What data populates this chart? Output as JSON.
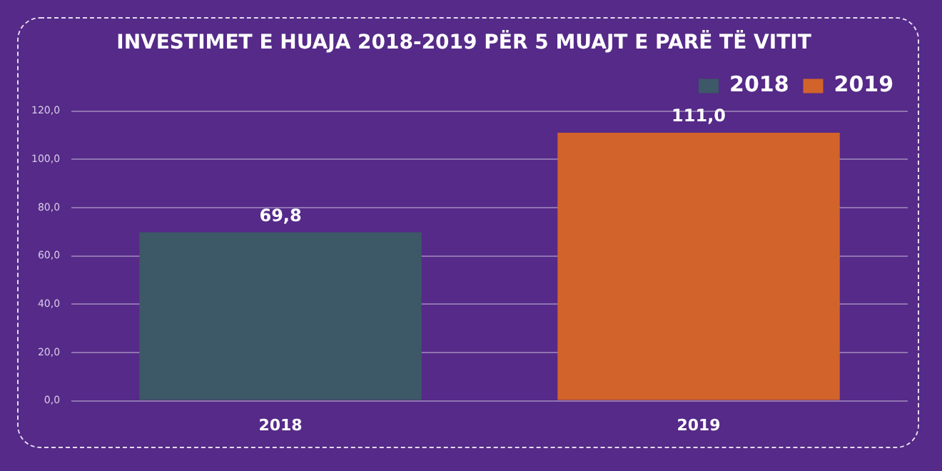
{
  "chart_data": {
    "type": "bar",
    "title": "INVESTIMET E HUAJA 2018-2019 PËR 5 MUAJT E PARË TË VITIT",
    "categories": [
      "2018",
      "2019"
    ],
    "series": [
      {
        "name": "2018",
        "color": "#3d5866",
        "values": [
          69.8,
          null
        ],
        "value_labels": [
          "69,8",
          null
        ]
      },
      {
        "name": "2019",
        "color": "#d2632a",
        "values": [
          null,
          111.0
        ],
        "value_labels": [
          null,
          "111,0"
        ]
      }
    ],
    "ylim": [
      0,
      120
    ],
    "yticks": [
      {
        "value": 0,
        "label": "0,0"
      },
      {
        "value": 20,
        "label": "20,0"
      },
      {
        "value": 40,
        "label": "40,0"
      },
      {
        "value": 60,
        "label": "60,0"
      },
      {
        "value": 80,
        "label": "80,0"
      },
      {
        "value": 100,
        "label": "100,0"
      },
      {
        "value": 120,
        "label": "120,0"
      }
    ],
    "grid": "y",
    "legend": "top right"
  }
}
